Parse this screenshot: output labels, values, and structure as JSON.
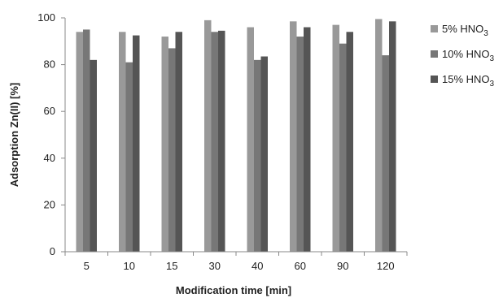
{
  "chart_data": {
    "type": "bar",
    "categories": [
      "5",
      "10",
      "15",
      "30",
      "40",
      "60",
      "90",
      "120"
    ],
    "series": [
      {
        "name": "5% HNO",
        "name_sub": "3",
        "color": "#999999",
        "values": [
          94,
          94,
          92,
          99,
          96,
          98.5,
          97,
          99.5
        ]
      },
      {
        "name": "10% HNO",
        "name_sub": "3",
        "color": "#777777",
        "values": [
          95,
          81,
          87,
          94,
          82,
          92,
          89,
          84
        ]
      },
      {
        "name": "15% HNO",
        "name_sub": "3",
        "color": "#555555",
        "values": [
          82,
          92.5,
          94,
          94.5,
          83.5,
          96,
          94,
          98.5
        ]
      }
    ],
    "xlabel": "Modification time [min]",
    "ylabel": "Adsorption Zn(II) [%]",
    "ylim": [
      0,
      100
    ],
    "yticks": [
      "0",
      "20",
      "40",
      "60",
      "80",
      "100"
    ],
    "grid": false,
    "legend_position": "right"
  }
}
